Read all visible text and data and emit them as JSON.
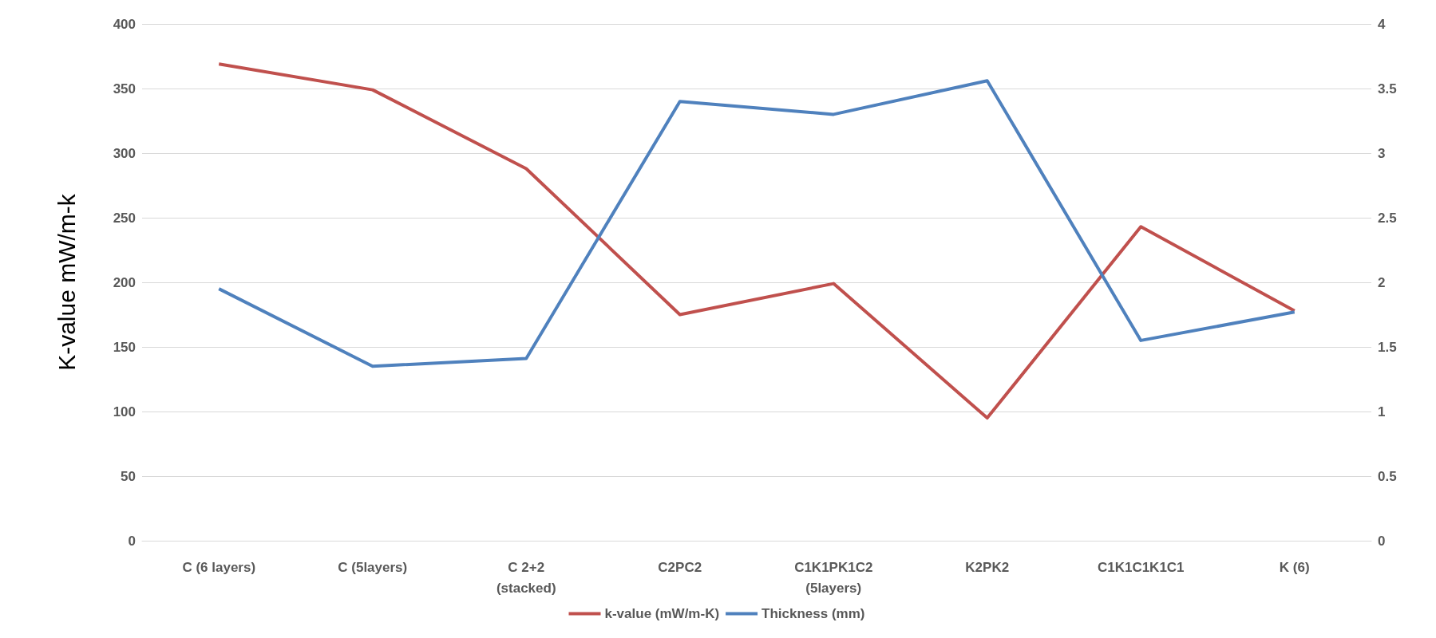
{
  "chart_data": {
    "type": "line",
    "ylabel": "K-value mW/m-k",
    "categories": [
      "C (6 layers)",
      "C (5layers)",
      "C 2+2\n(stacked)",
      "C2PC2",
      "C1K1PK1C2\n(5layers)",
      "K2PK2",
      "C1K1C1K1C1",
      "K (6)"
    ],
    "series": [
      {
        "name": "k-value (mW/m-K)",
        "color": "#c0504d",
        "values": [
          369,
          349,
          288,
          175,
          199,
          95,
          243,
          178
        ]
      },
      {
        "name": "Thickness (mm)",
        "color": "#4f81bd",
        "axis": "y2",
        "values": [
          1.95,
          1.35,
          1.41,
          3.4,
          3.3,
          3.56,
          1.55,
          1.77
        ]
      }
    ],
    "ylim": [
      0,
      400
    ],
    "yticks": [
      0,
      50,
      100,
      150,
      200,
      250,
      300,
      350,
      400
    ],
    "y2lim": [
      0,
      4
    ],
    "y2ticks": [
      0,
      0.5,
      1,
      1.5,
      2,
      2.5,
      3,
      3.5,
      4
    ],
    "grid": "y",
    "legend": "bottom",
    "marker": "none",
    "line_style": "solid"
  }
}
